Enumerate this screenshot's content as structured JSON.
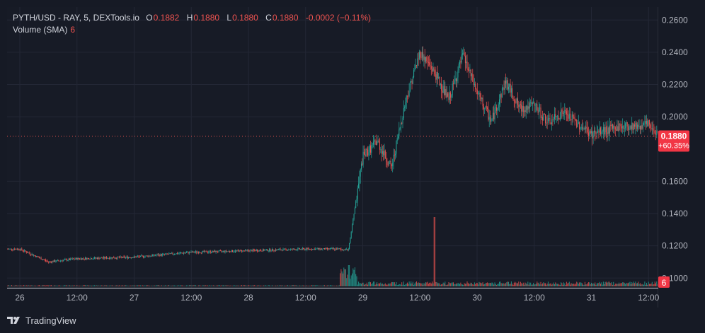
{
  "header": {
    "symbol": "PYTH/USD - RAY, 5, DEXTools.io",
    "open_label": "O",
    "open": "0.1882",
    "high_label": "H",
    "high": "0.1880",
    "low_label": "L",
    "low": "0.1880",
    "close_label": "C",
    "close": "0.1880",
    "change": "-0.0002 (−0.11%)",
    "volume_label": "Volume (SMA)",
    "volume_value": "6"
  },
  "price_tag": {
    "price": "0.1880",
    "change": "+60.35%",
    "color": "#f23645"
  },
  "volume_tag": {
    "value": "6"
  },
  "branding": {
    "name": "TradingView",
    "icon": "tradingview-logo-icon"
  },
  "colors": {
    "up": "#26a69a",
    "down": "#ef5350",
    "background": "#171b26",
    "grid": "#232735"
  },
  "chart_data": {
    "type": "candlestick",
    "y_axis": {
      "ticks": [
        "0.2600",
        "0.2400",
        "0.2200",
        "0.2000",
        "0.1600",
        "0.1400",
        "0.1200",
        "0.1000"
      ],
      "ylim": [
        0.094,
        0.268
      ]
    },
    "x_axis": {
      "ticks": [
        "26",
        "12:00",
        "27",
        "12:00",
        "28",
        "12:00",
        "29",
        "12:00",
        "30",
        "12:00",
        "31",
        "12:00"
      ]
    },
    "series": [
      {
        "x": [
          "26 00:00",
          "26 06:00",
          "26 12:00",
          "27 00:00",
          "27 12:00",
          "28 00:00",
          "28 12:00",
          "28 21:00",
          "29 00:00",
          "29 03:00",
          "29 06:00",
          "29 09:00",
          "29 12:00",
          "29 15:00",
          "29 18:00",
          "29 21:00",
          "30 00:00",
          "30 03:00",
          "30 06:00",
          "30 09:00",
          "30 12:00",
          "30 15:00",
          "30 18:00",
          "31 00:00",
          "31 06:00",
          "31 12:00",
          "31 15:00"
        ],
        "y": [
          0.118,
          0.11,
          0.112,
          0.113,
          0.116,
          0.117,
          0.118,
          0.118,
          0.175,
          0.185,
          0.168,
          0.21,
          0.24,
          0.228,
          0.21,
          0.238,
          0.215,
          0.197,
          0.222,
          0.205,
          0.207,
          0.196,
          0.203,
          0.189,
          0.194,
          0.195,
          0.188
        ]
      }
    ],
    "volume": {
      "base": "low",
      "spikes": [
        {
          "x": "28 21:00",
          "level": "medium"
        },
        {
          "x": "29 15:00",
          "level": "high"
        }
      ]
    }
  }
}
